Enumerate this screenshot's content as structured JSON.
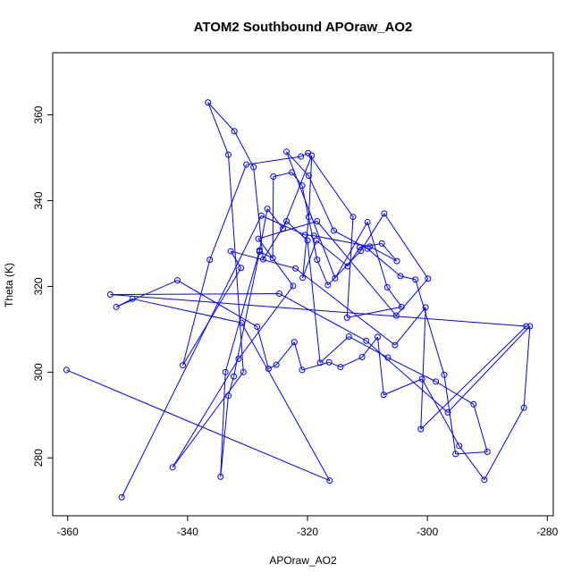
{
  "chart_data": {
    "type": "line",
    "title": "ATOM2 Southbound APOraw_AO2",
    "xlabel": "APOraw_AO2",
    "ylabel": "Theta (K)",
    "xlim": [
      -362.5,
      -279
    ],
    "ylim": [
      266.5,
      374.5
    ],
    "x_ticks": [
      -360,
      -340,
      -320,
      -300,
      -280
    ],
    "y_ticks": [
      280,
      300,
      320,
      340,
      360
    ],
    "x_tick_labels": [
      "-360",
      "-340",
      "-320",
      "-300",
      "-280"
    ],
    "y_tick_labels": [
      "280",
      "300",
      "320",
      "340",
      "360"
    ],
    "grid": false,
    "legend": "none",
    "series": [
      {
        "color": "#0000ff",
        "marker": "open-circle",
        "x": [
          -360.2,
          -316.3,
          -331.0,
          -349.2,
          -351.9,
          -341.7,
          -328.4,
          -326.5,
          -325.2,
          -322.2,
          -320.9,
          -316.4,
          -314.5,
          -310.9,
          -308.3,
          -307.3,
          -300.9,
          -294.7,
          -290.5,
          -283.9,
          -282.9,
          -296.6,
          -310.2,
          -324.7,
          -352.9,
          -283.5,
          -301.1,
          -300.3,
          -305.4,
          -322.0,
          -332.8,
          -331.1,
          -340.8,
          -336.3,
          -330.2,
          -321.1,
          -319.9,
          -312.4,
          -313.4,
          -304.3,
          -306.7,
          -310.0,
          -315.4,
          -323.5,
          -319.8,
          -315.6,
          -310.0,
          -304.5,
          -302.0,
          -297.2,
          -295.3,
          -290.0,
          -292.3,
          -298.6,
          -306.6,
          -313.1,
          -317.9,
          -320.0,
          -323.5,
          -327.4,
          -329.0,
          -332.2,
          -336.6,
          -333.2,
          -330.7,
          -342.5,
          -331.5,
          -322.4,
          -328.2,
          -318.4,
          -305.2,
          -299.9,
          -307.2,
          -311.1,
          -316.6,
          -318.4,
          -320.9,
          -322.6,
          -325.7,
          -325.8,
          -328.0,
          -332.3,
          -333.2,
          -334.5,
          -333.7,
          -328.0,
          -326.7,
          -324.1,
          -319.3,
          -319.8,
          -320.8,
          -318.5,
          -313.3,
          -311.3,
          -307.6,
          -305.1,
          -309.6,
          -318.9,
          -320.4,
          -327.7,
          -351.0
        ],
        "y": [
          300.5,
          274.7,
          311.5,
          317.1,
          315.2,
          321.4,
          310.6,
          300.8,
          301.7,
          307.0,
          300.5,
          302.3,
          301.2,
          303.5,
          308.2,
          294.7,
          298.4,
          282.8,
          274.9,
          291.7,
          310.7,
          290.6,
          307.3,
          318.3,
          318.1,
          310.7,
          286.7,
          315.1,
          306.3,
          324.2,
          328.2,
          324.3,
          301.6,
          326.2,
          348.4,
          350.3,
          351.1,
          336.2,
          312.7,
          315.2,
          319.8,
          335.0,
          321.9,
          351.4,
          345.8,
          333.0,
          328.8,
          322.4,
          321.6,
          299.4,
          280.9,
          281.4,
          292.5,
          297.8,
          303.4,
          308.3,
          302.2,
          330.7,
          335.2,
          326.3,
          347.8,
          356.2,
          362.9,
          350.7,
          300.0,
          277.8,
          303.1,
          320.1,
          331.1,
          335.2,
          313.2,
          321.8,
          337.0,
          328.3,
          320.3,
          326.2,
          343.5,
          346.6,
          345.6,
          326.6,
          328.1,
          299.0,
          294.5,
          275.6,
          300.0,
          328.4,
          338.1,
          333.5,
          350.5,
          336.2,
          322.0,
          330.7,
          324.7,
          329.1,
          330.0,
          325.9,
          329.3,
          331.8,
          332.0,
          336.5,
          270.8
        ]
      }
    ]
  }
}
